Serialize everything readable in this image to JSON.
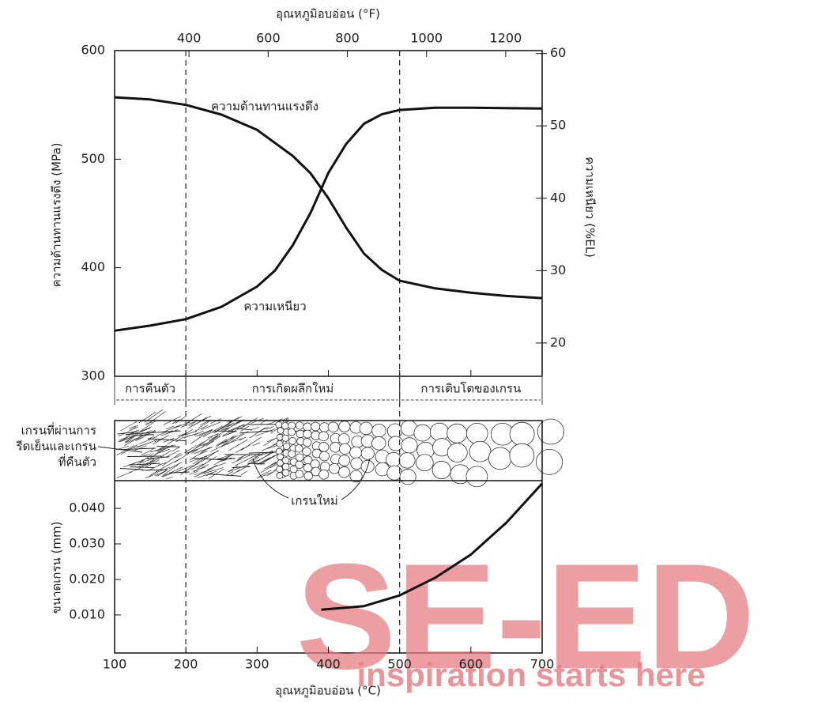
{
  "chart_data": [
    {
      "type": "line",
      "x2label": "อุณหภูมิอบอ่อน (°F)",
      "x2lim": [
        212,
        1292
      ],
      "x2ticks": [
        400,
        600,
        800,
        1000,
        1200
      ],
      "xlim": [
        100,
        700
      ],
      "ylabel": "ความต้านทานแรงดึง (MPa)",
      "ylim": [
        300,
        600
      ],
      "yticks": [
        300,
        400,
        500,
        600
      ],
      "y2label": "ความเหนียว (%EL)",
      "y2lim": [
        15.4,
        60.4
      ],
      "y2ticks": [
        20,
        30,
        40,
        50,
        60
      ],
      "series": [
        {
          "name": "ความต้านทานแรงดึง",
          "color": "#111111",
          "x": [
            100,
            150,
            200,
            250,
            300,
            350,
            375,
            400,
            425,
            450,
            475,
            500,
            550,
            600,
            650,
            700
          ],
          "values": [
            557,
            555,
            550,
            541,
            527,
            503,
            487,
            464,
            437,
            413,
            398,
            388,
            381,
            377,
            374,
            372
          ]
        },
        {
          "name": "ความเหนียว",
          "color": "#111111",
          "axis": "y2",
          "x": [
            100,
            150,
            200,
            250,
            300,
            325,
            350,
            375,
            400,
            425,
            450,
            475,
            500,
            550,
            600,
            700
          ],
          "values": [
            21.7,
            22.4,
            23.3,
            25,
            27.8,
            30,
            33.5,
            38,
            43.5,
            47.5,
            50.3,
            51.6,
            52.2,
            52.5,
            52.5,
            52.4
          ]
        }
      ],
      "regions": [
        {
          "label": "การคืนตัว",
          "from": 100,
          "to": 200
        },
        {
          "label": "การเกิดผลึกใหม่",
          "from": 200,
          "to": 500
        },
        {
          "label": "การเติบโตของเกรน",
          "from": 500,
          "to": 700
        }
      ]
    },
    {
      "type": "line",
      "xlabel": "อุณหภูมิอบอ่อน (°C)",
      "xlim": [
        100,
        700
      ],
      "xticks": [
        100,
        200,
        300,
        400,
        500,
        600,
        700
      ],
      "ylabel": "ขนาดเกรน (mm)",
      "ylim": [
        -0.0007,
        0.0478
      ],
      "yticks": [
        {
          "value": 0.01,
          "label": "0.010"
        },
        {
          "value": 0.02,
          "label": "0.020"
        },
        {
          "value": 0.03,
          "label": "0.030"
        },
        {
          "value": 0.04,
          "label": "0.040"
        }
      ],
      "series": [
        {
          "color": "#111111",
          "x": [
            390,
            450,
            500,
            550,
            600,
            650,
            700
          ],
          "values": [
            0.0115,
            0.0125,
            0.0155,
            0.0205,
            0.027,
            0.036,
            0.047
          ]
        }
      ]
    }
  ],
  "micrograph": {
    "cold_worked_label": [
      "เกรนที่ผ่านการ",
      "รีดเย็นและเกรน",
      "ที่คืนตัว"
    ],
    "new_grains_label": "เกรนใหม่"
  },
  "watermark": {
    "text": "SE-ED",
    "tagline": "inspiration starts here"
  }
}
